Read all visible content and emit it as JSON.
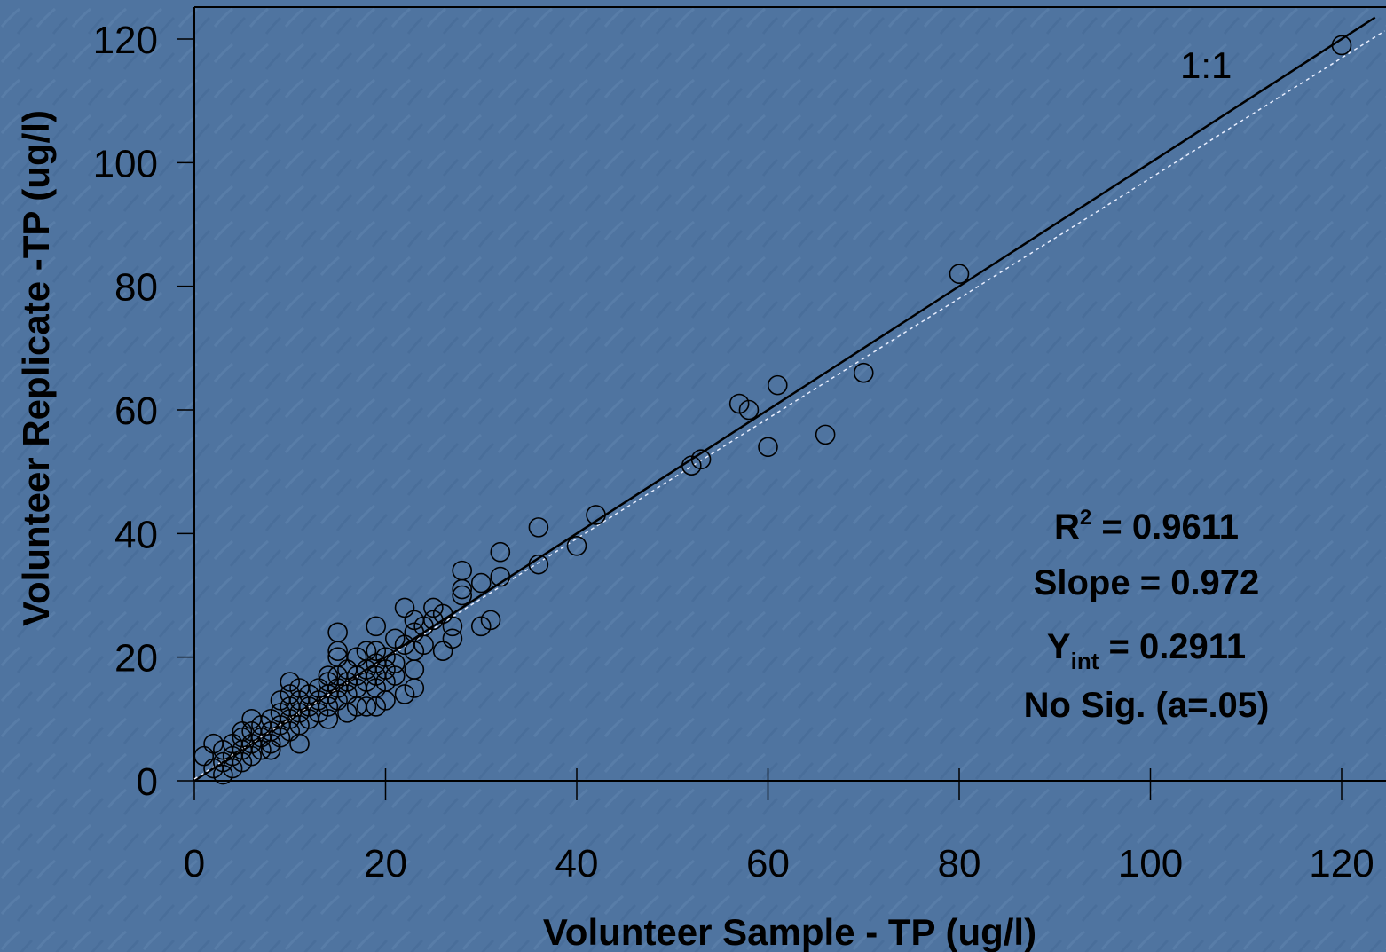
{
  "chart_data": {
    "type": "scatter",
    "xlabel": "Volunteer  Sample - TP (ug/l)",
    "ylabel": "Volunteer Replicate -TP (ug/l)",
    "xlim": [
      0,
      120
    ],
    "ylim": [
      0,
      120
    ],
    "xticks": [
      "0",
      "20",
      "40",
      "60",
      "80",
      "100",
      "120"
    ],
    "yticks": [
      "0",
      "20",
      "40",
      "60",
      "80",
      "100",
      "120"
    ],
    "grid": false,
    "reference_line": {
      "label": "1:1",
      "slope": 1,
      "intercept": 0
    },
    "fit_line": {
      "slope": 0.972,
      "intercept": 0.2911
    },
    "stats": {
      "r2_prefix": "R",
      "r2_sup": "2",
      "r2_value": " = 0.9611",
      "slope_text": "Slope = 0.972",
      "yint_prefix": "Y",
      "yint_sub": "int",
      "yint_value": " = 0.2911",
      "sig_text": "No Sig. (a=.05)"
    },
    "points": [
      [
        1,
        4
      ],
      [
        2,
        6
      ],
      [
        2,
        2
      ],
      [
        3,
        1
      ],
      [
        3,
        3
      ],
      [
        3,
        5
      ],
      [
        4,
        2
      ],
      [
        4,
        4
      ],
      [
        4,
        6
      ],
      [
        5,
        3
      ],
      [
        5,
        5
      ],
      [
        5,
        7
      ],
      [
        5,
        8
      ],
      [
        6,
        4
      ],
      [
        6,
        6
      ],
      [
        6,
        8
      ],
      [
        6,
        10
      ],
      [
        7,
        5
      ],
      [
        7,
        7
      ],
      [
        7,
        9
      ],
      [
        8,
        6
      ],
      [
        8,
        8
      ],
      [
        8,
        10
      ],
      [
        8,
        5
      ],
      [
        9,
        7
      ],
      [
        9,
        9
      ],
      [
        9,
        11
      ],
      [
        9,
        13
      ],
      [
        10,
        8
      ],
      [
        10,
        10
      ],
      [
        10,
        12
      ],
      [
        10,
        14
      ],
      [
        10,
        16
      ],
      [
        11,
        6
      ],
      [
        11,
        9
      ],
      [
        11,
        11
      ],
      [
        11,
        13
      ],
      [
        11,
        15
      ],
      [
        12,
        10
      ],
      [
        12,
        12
      ],
      [
        12,
        14
      ],
      [
        13,
        11
      ],
      [
        13,
        13
      ],
      [
        13,
        15
      ],
      [
        14,
        10
      ],
      [
        14,
        12
      ],
      [
        14,
        14
      ],
      [
        14,
        16
      ],
      [
        14,
        17
      ],
      [
        15,
        13
      ],
      [
        15,
        15
      ],
      [
        15,
        17
      ],
      [
        15,
        20
      ],
      [
        15,
        24
      ],
      [
        15,
        21
      ],
      [
        16,
        11
      ],
      [
        16,
        14
      ],
      [
        16,
        16
      ],
      [
        16,
        18
      ],
      [
        17,
        12
      ],
      [
        17,
        15
      ],
      [
        17,
        17
      ],
      [
        17,
        20
      ],
      [
        18,
        12
      ],
      [
        18,
        16
      ],
      [
        18,
        18
      ],
      [
        18,
        21
      ],
      [
        19,
        12
      ],
      [
        19,
        15
      ],
      [
        19,
        17
      ],
      [
        19,
        19
      ],
      [
        19,
        21
      ],
      [
        19,
        25
      ],
      [
        20,
        13
      ],
      [
        20,
        16
      ],
      [
        20,
        18
      ],
      [
        20,
        20
      ],
      [
        21,
        17
      ],
      [
        21,
        19
      ],
      [
        21,
        23
      ],
      [
        22,
        14
      ],
      [
        22,
        22
      ],
      [
        22,
        28
      ],
      [
        23,
        15
      ],
      [
        23,
        18
      ],
      [
        23,
        21
      ],
      [
        23,
        24
      ],
      [
        23,
        26
      ],
      [
        24,
        22
      ],
      [
        24,
        25
      ],
      [
        25,
        26
      ],
      [
        25,
        28
      ],
      [
        26,
        21
      ],
      [
        26,
        27
      ],
      [
        27,
        23
      ],
      [
        27,
        25
      ],
      [
        28,
        30
      ],
      [
        28,
        31
      ],
      [
        28,
        34
      ],
      [
        30,
        25
      ],
      [
        30,
        32
      ],
      [
        31,
        26
      ],
      [
        32,
        33
      ],
      [
        32,
        37
      ],
      [
        36,
        35
      ],
      [
        36,
        41
      ],
      [
        40,
        38
      ],
      [
        42,
        43
      ],
      [
        52,
        51
      ],
      [
        53,
        52
      ],
      [
        57,
        61
      ],
      [
        58,
        60
      ],
      [
        60,
        54
      ],
      [
        61,
        64
      ],
      [
        66,
        56
      ],
      [
        70,
        66
      ],
      [
        80,
        82
      ],
      [
        120,
        119
      ]
    ]
  }
}
